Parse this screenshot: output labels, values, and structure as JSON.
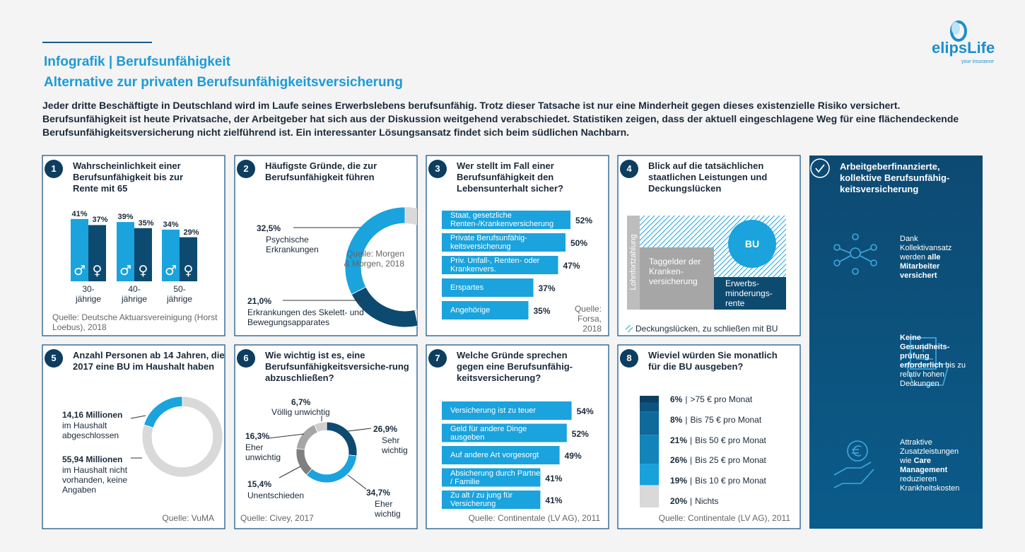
{
  "header": {
    "title": "Infografik | Berufsunfähigkeit",
    "subtitle": "Alternative zur privaten Berufsunfähigkeitsversicherung",
    "intro": "Jeder dritte Beschäftigte in Deutschland wird im Laufe seines Erwerbslebens berufsunfähig. Trotz dieser Tatsache ist nur eine Minderheit gegen dieses existenzielle Risiko versichert. Berufsunfähigkeit ist heute Privatsache, der Arbeitgeber hat sich aus der Diskussion weitgehend verabschiedet. Statistiken zeigen, dass der aktuell eingeschlagene Weg für eine flächendeckende Berufsunfähigkeitsversicherung nicht zielführend ist. Ein interessanter Lösungsansatz findet sich beim südlichen Nachbarn.",
    "logo": "elipsLife",
    "logo_tagline": "your insurance"
  },
  "chart_data": [
    {
      "type": "bar",
      "number": "1",
      "title": "Wahrscheinlichkeit einer Berufsunfähigkeit bis zur Rente mit 65",
      "categories": [
        "30-jährige",
        "40-jährige",
        "50-jährige"
      ],
      "series": [
        {
          "name": "♂",
          "color": "#1aa3dd",
          "values": [
            41,
            39,
            34
          ],
          "value_labels": [
            "41%",
            "39%",
            "34%"
          ]
        },
        {
          "name": "♀",
          "color": "#0d4a70",
          "values": [
            37,
            35,
            29
          ],
          "value_labels": [
            "37%",
            "35%",
            "29%"
          ]
        }
      ],
      "source": "Quelle: Deutsche Aktuarsvereinigung (Horst Loebus), 2018"
    },
    {
      "type": "donut",
      "number": "2",
      "title": "Häufigste Gründe, die zur Berufsunfähigkeit führen",
      "categories": [
        "Psychische Erkrankungen",
        "Erkrankungen des Skelett- und Bewegungsapparates"
      ],
      "values": [
        32.5,
        21.0
      ],
      "value_labels": [
        "32,5%",
        "21,0%"
      ],
      "colors": [
        "#1aa3dd",
        "#0d4a70"
      ],
      "remainder_color": "#d9d9d9",
      "source": "Quelle: Morgen & Morgen, 2018"
    },
    {
      "type": "hbar",
      "number": "3",
      "title": "Wer stellt im Fall einer Berufsunfähigkeit den Lebensunterhalt sicher?",
      "categories": [
        "Staat, gesetzliche Renten-/Krankenversicherung",
        "Private Berufsunfähig-keitsversicherung",
        "Priv. Unfall-, Renten- oder Krankenvers.",
        "Erspartes",
        "Angehörige"
      ],
      "values": [
        52,
        50,
        47,
        37,
        35
      ],
      "value_labels": [
        "52%",
        "50%",
        "47%",
        "37%",
        "35%"
      ],
      "color": "#1aa3dd",
      "source": "Quelle: Forsa, 2018"
    },
    {
      "type": "donut",
      "number": "5",
      "title": "Anzahl Personen ab 14 Jahren, die 2017 eine BU im Haushalt haben",
      "categories": [
        "im Haushalt abgeschlossen",
        "im Haushalt nicht vorhanden, keine Angaben"
      ],
      "values": [
        14.16,
        55.94
      ],
      "value_labels": [
        "14,16 Millionen",
        "55,94 Millionen"
      ],
      "colors": [
        "#1aa3dd",
        "#d9d9d9"
      ],
      "source": "Quelle: VuMA"
    },
    {
      "type": "donut",
      "number": "6",
      "title": "Wie wichtig ist es, eine Berufsunfähigkeitsversiche-rung abzuschließen?",
      "categories": [
        "Sehr wichtig",
        "Eher wichtig",
        "Unentschieden",
        "Eher unwichtig",
        "Völlig unwichtig"
      ],
      "values": [
        26.9,
        34.7,
        15.4,
        16.3,
        6.7
      ],
      "value_labels": [
        "26,9%",
        "34,7%",
        "15,4%",
        "16,3%",
        "6,7%"
      ],
      "colors": [
        "#0d4a70",
        "#1aa3dd",
        "#7f7f7f",
        "#a6a6a6",
        "#cfcfcf"
      ],
      "source": "Quelle: Civey, 2017"
    },
    {
      "type": "hbar",
      "number": "7",
      "title": "Welche Gründe sprechen gegen eine Berufsunfähig-keitsversicherung?",
      "categories": [
        "Versicherung ist zu teuer",
        "Geld für andere Dinge ausgeben",
        "Auf andere Art vorgesorgt",
        "Absicherung durch Partner / Familie",
        "Zu alt / zu jung für Versicherung"
      ],
      "values": [
        54,
        52,
        49,
        41,
        41
      ],
      "value_labels": [
        "54%",
        "52%",
        "49%",
        "41%",
        "41%"
      ],
      "color": "#1aa3dd",
      "source": "Quelle: Continentale (LV AG), 2011"
    },
    {
      "type": "stacked-bar",
      "number": "8",
      "title": "Wieviel würden Sie monatlich für die BU ausgeben?",
      "categories": [
        ">75 € pro Monat",
        "Bis 75 € pro Monat",
        "Bis 50 € pro Monat",
        "Bis 25 € pro Monat",
        "Bis 10 € pro Monat",
        "Nichts"
      ],
      "values": [
        6,
        8,
        21,
        26,
        19,
        20
      ],
      "value_labels": [
        "6%",
        "8%",
        "21%",
        "26%",
        "19%",
        "20%"
      ],
      "colors": [
        "#0b3f62",
        "#0d5380",
        "#0f6a9c",
        "#1284ba",
        "#18a2dc",
        "#d9d9d9"
      ],
      "separator": "|",
      "source": "Quelle: Continentale (LV AG), 2011"
    }
  ],
  "panel4": {
    "number": "4",
    "title": "Blick auf die tatsächlichen staatlichen Leistungen und Deckungslücken",
    "lohnfortzahlung": "Lohnfortzahlung",
    "taggelder": "Taggelder der Kranken-versicherung",
    "bu": "BU",
    "erwerb": "Erwerbs-minderungs-rente",
    "legend": "Deckungslücken, zu schließen mit BU"
  },
  "sidebar": {
    "title": "Arbeitgeberfinanzierte, kollektive Berufsunfähig-keitsversicherung",
    "items": [
      {
        "parts": [
          {
            "text": "Dank Kollektivansatz werden "
          },
          {
            "text": "alle Mitarbeiter versichert",
            "bold": true
          }
        ]
      },
      {
        "parts": [
          {
            "text": "Keine Gesundheits-prüfung erforderlich",
            "bold": true
          },
          {
            "text": " bis zu relativ hohen Deckungen"
          }
        ]
      },
      {
        "parts": [
          {
            "text": "Attraktive Zusatzleistungen wie "
          },
          {
            "text": "Care Management",
            "bold": true
          },
          {
            "text": " reduzieren Krankheitskosten"
          }
        ]
      }
    ]
  }
}
